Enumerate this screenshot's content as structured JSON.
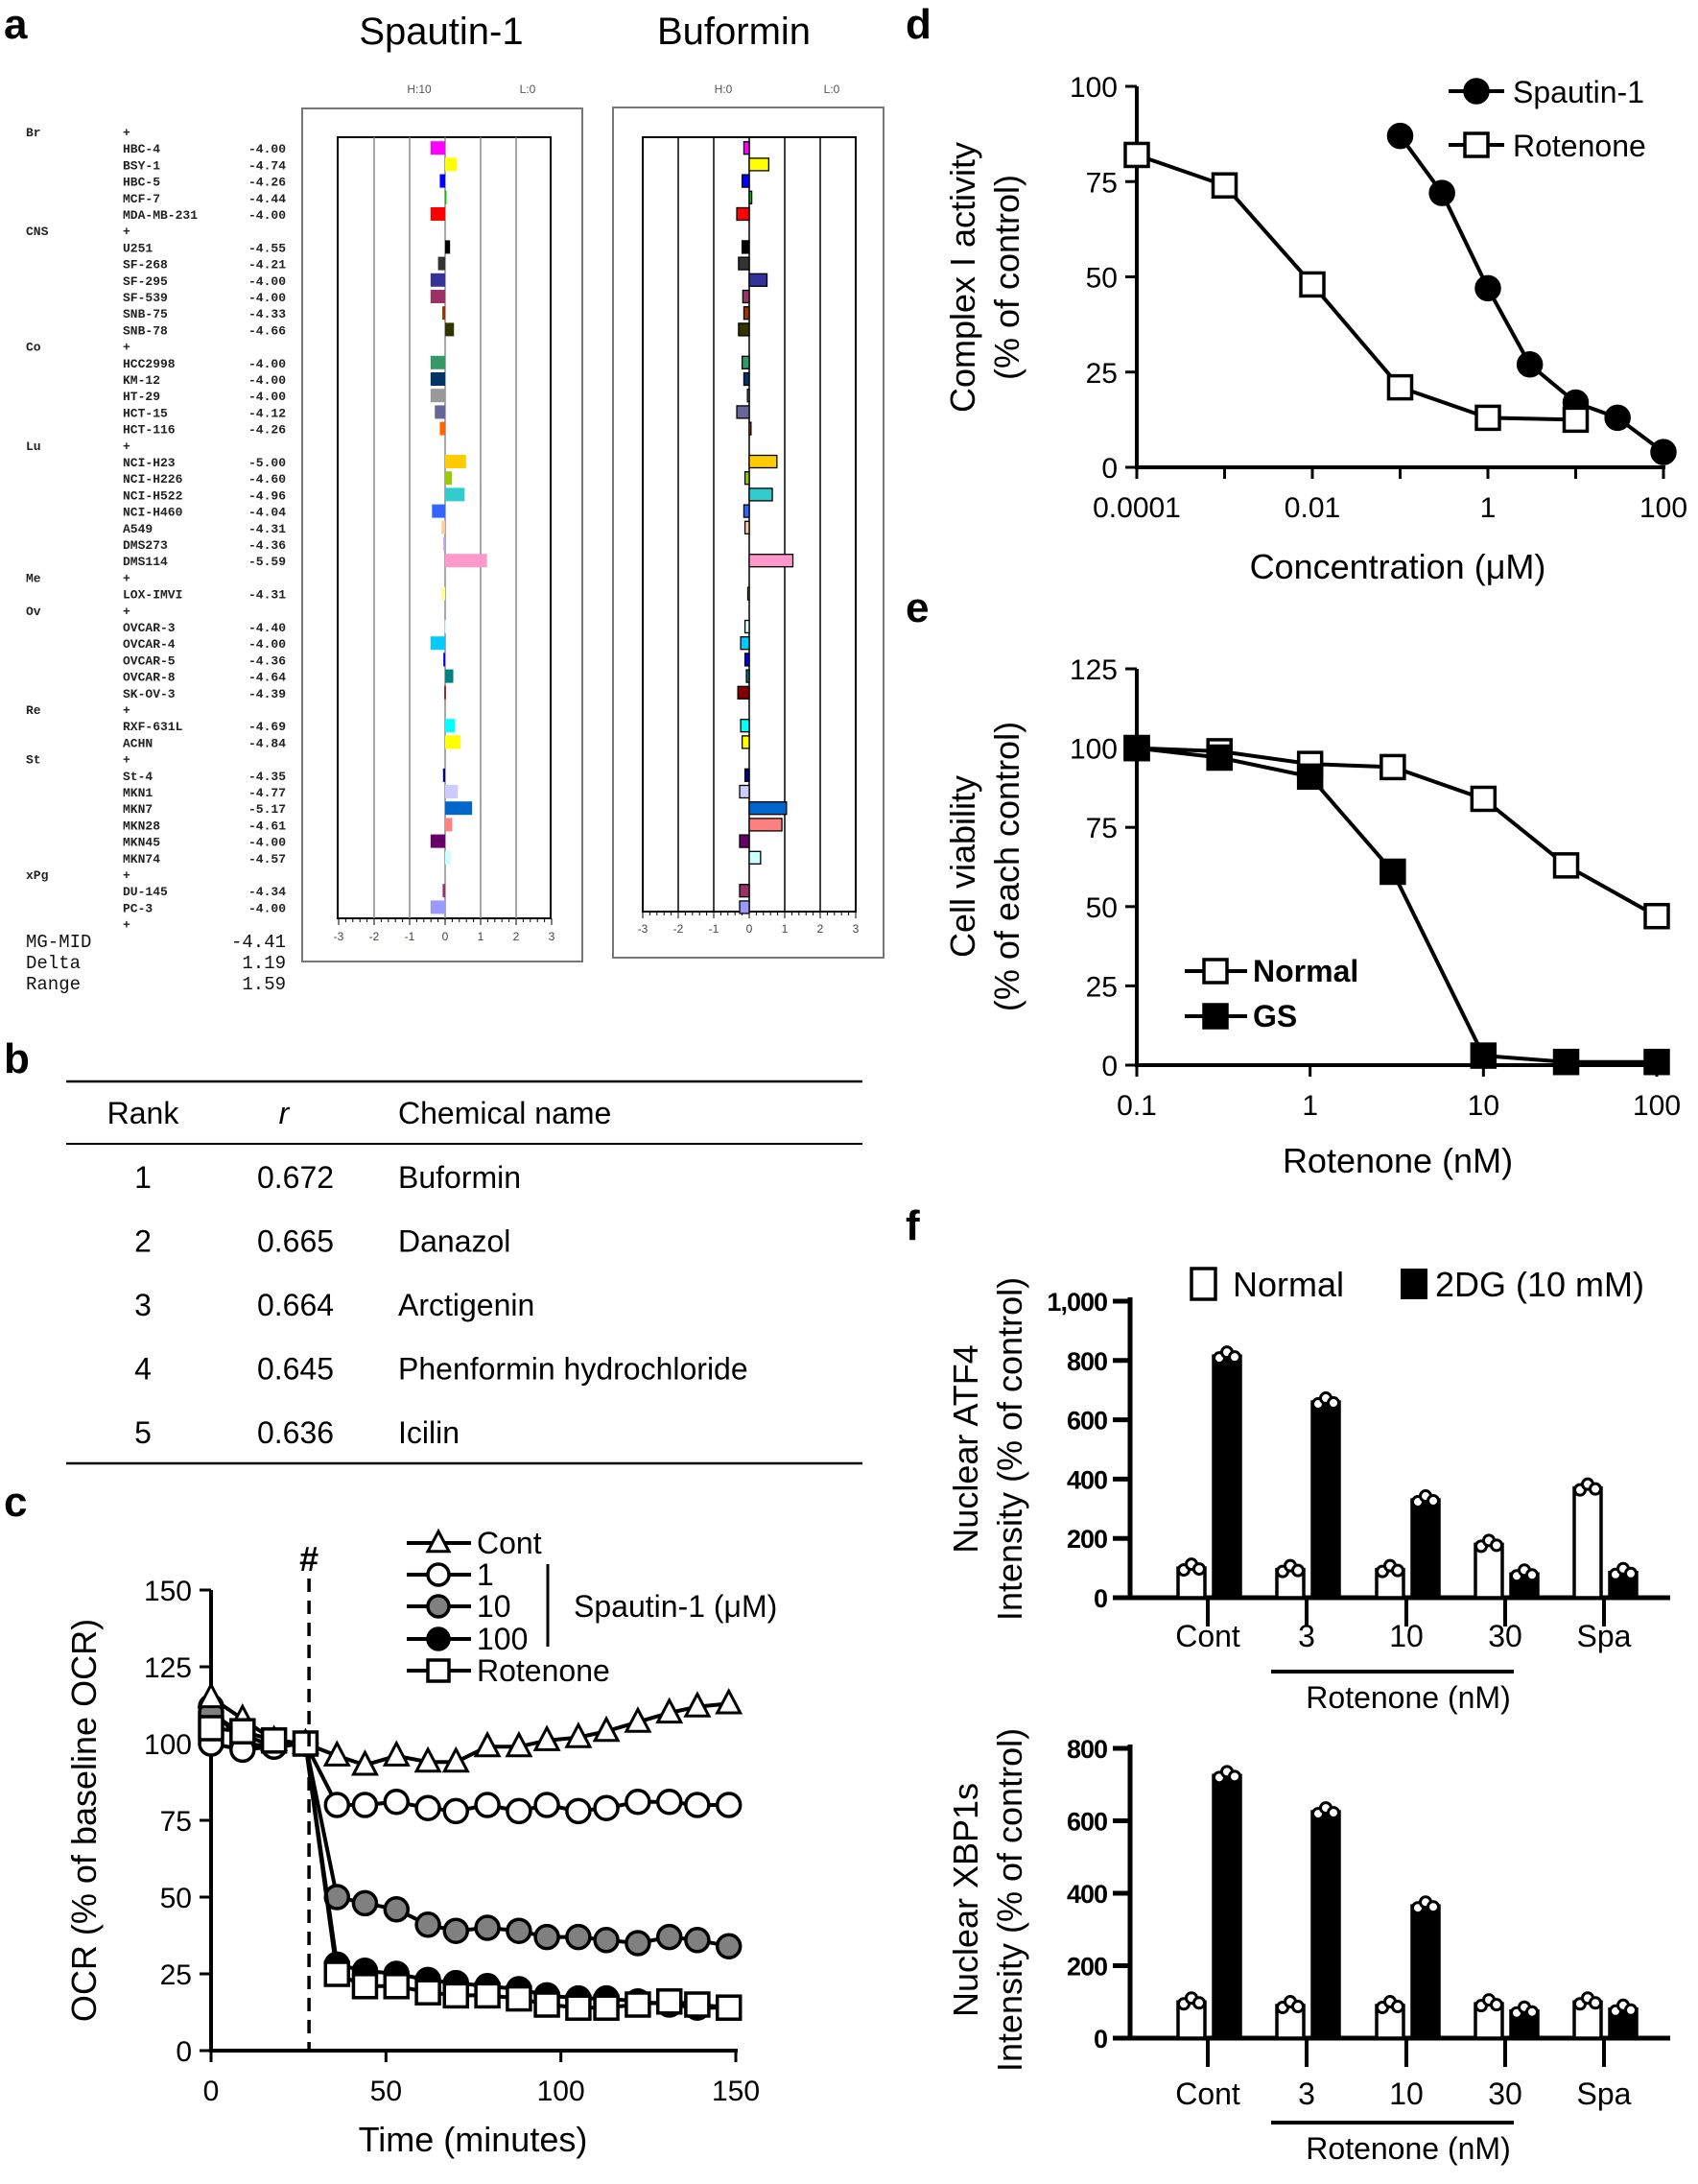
{
  "panel_labels": {
    "a": "a",
    "b": "b",
    "c": "c",
    "d": "d",
    "e": "e",
    "f": "f"
  },
  "chart_data": [
    {
      "type": "bar",
      "panel": "a",
      "titles": [
        "Spautin-1",
        "Buformin"
      ],
      "spautin_header": {
        "h": "H:10",
        "l": "L:0"
      },
      "buformin_header": {
        "h": "H:0",
        "l": "L:0"
      },
      "group_marker": "+",
      "xlim": [
        -3,
        3
      ],
      "xticks": [
        "-3",
        "-2",
        "-1",
        "0",
        "1",
        "2",
        "3"
      ],
      "groups": [
        {
          "name": "Br",
          "lines": [
            {
              "name": "HBC-4",
              "value": "-4.00",
              "color": "#ff00ff",
              "buformin": -0.15
            },
            {
              "name": "BSY-1",
              "value": "-4.74",
              "color": "#ffff00",
              "buformin": 0.55
            },
            {
              "name": "HBC-5",
              "value": "-4.26",
              "color": "#0000ff",
              "buformin": -0.2
            },
            {
              "name": "MCF-7",
              "value": "-4.44",
              "color": "#00cc00",
              "buformin": 0.07
            },
            {
              "name": "MDA-MB-231",
              "value": "-4.00",
              "color": "#ff0000",
              "buformin": -0.35
            }
          ]
        },
        {
          "name": "CNS",
          "lines": [
            {
              "name": "U251",
              "value": "-4.55",
              "color": "#000000",
              "buformin": -0.2
            },
            {
              "name": "SF-268",
              "value": "-4.21",
              "color": "#333333",
              "buformin": -0.3
            },
            {
              "name": "SF-295",
              "value": "-4.00",
              "color": "#333399",
              "buformin": 0.5
            },
            {
              "name": "SF-539",
              "value": "-4.00",
              "color": "#993366",
              "buformin": -0.18
            },
            {
              "name": "SNB-75",
              "value": "-4.33",
              "color": "#993300",
              "buformin": -0.15
            },
            {
              "name": "SNB-78",
              "value": "-4.66",
              "color": "#333300",
              "buformin": -0.3
            }
          ]
        },
        {
          "name": "Co",
          "lines": [
            {
              "name": "HCC2998",
              "value": "-4.00",
              "color": "#339966",
              "buformin": -0.2
            },
            {
              "name": "KM-12",
              "value": "-4.00",
              "color": "#003366",
              "buformin": -0.15
            },
            {
              "name": "HT-29",
              "value": "-4.00",
              "color": "#999999",
              "buformin": -0.05
            },
            {
              "name": "HCT-15",
              "value": "-4.12",
              "color": "#666699",
              "buformin": -0.35
            },
            {
              "name": "HCT-116",
              "value": "-4.26",
              "color": "#ff6600",
              "buformin": 0.05
            }
          ]
        },
        {
          "name": "Lu",
          "lines": [
            {
              "name": "NCI-H23",
              "value": "-5.00",
              "color": "#ffcc00",
              "buformin": 0.78
            },
            {
              "name": "NCI-H226",
              "value": "-4.60",
              "color": "#99cc00",
              "buformin": -0.12
            },
            {
              "name": "NCI-H522",
              "value": "-4.96",
              "color": "#33cccc",
              "buformin": 0.65
            },
            {
              "name": "NCI-H460",
              "value": "-4.04",
              "color": "#3366ff",
              "buformin": -0.15
            },
            {
              "name": "A549",
              "value": "-4.31",
              "color": "#ffcc99",
              "buformin": -0.12
            },
            {
              "name": "DMS273",
              "value": "-4.36",
              "color": "#cc99ff",
              "buformin": 0
            },
            {
              "name": "DMS114",
              "value": "-5.59",
              "color": "#ff99cc",
              "buformin": 1.23
            }
          ]
        },
        {
          "name": "Me",
          "lines": [
            {
              "name": "LOX-IMVI",
              "value": "-4.31",
              "color": "#ffff99",
              "buformin": -0.04
            }
          ]
        },
        {
          "name": "Ov",
          "lines": [
            {
              "name": "OVCAR-3",
              "value": "-4.40",
              "color": "#ccffff",
              "buformin": -0.12
            },
            {
              "name": "OVCAR-4",
              "value": "-4.00",
              "color": "#00ccff",
              "buformin": -0.24
            },
            {
              "name": "OVCAR-5",
              "value": "-4.36",
              "color": "#0000ee",
              "buformin": -0.12
            },
            {
              "name": "OVCAR-8",
              "value": "-4.64",
              "color": "#008080",
              "buformin": -0.08
            },
            {
              "name": "SK-OV-3",
              "value": "-4.39",
              "color": "#800000",
              "buformin": -0.32
            }
          ]
        },
        {
          "name": "Re",
          "lines": [
            {
              "name": "RXF-631L",
              "value": "-4.69",
              "color": "#00ffff",
              "buformin": -0.24
            },
            {
              "name": "ACHN",
              "value": "-4.84",
              "color": "#ffff00",
              "buformin": -0.2
            }
          ]
        },
        {
          "name": "St",
          "lines": [
            {
              "name": "St-4",
              "value": "-4.35",
              "color": "#000080",
              "buformin": -0.12
            },
            {
              "name": "MKN1",
              "value": "-4.77",
              "color": "#ccccff",
              "buformin": -0.27
            },
            {
              "name": "MKN7",
              "value": "-5.17",
              "color": "#0066cc",
              "buformin": 1.05
            },
            {
              "name": "MKN28",
              "value": "-4.61",
              "color": "#ff8080",
              "buformin": 0.92
            },
            {
              "name": "MKN45",
              "value": "-4.00",
              "color": "#660066",
              "buformin": -0.27
            },
            {
              "name": "MKN74",
              "value": "-4.57",
              "color": "#ccffff",
              "buformin": 0.32
            }
          ]
        },
        {
          "name": "xPg",
          "lines": [
            {
              "name": "DU-145",
              "value": "-4.34",
              "color": "#993366",
              "buformin": -0.27
            },
            {
              "name": "PC-3",
              "value": "-4.00",
              "color": "#9999ff",
              "buformin": -0.27
            }
          ]
        }
      ],
      "summary": [
        {
          "label": "MG-MID",
          "value": "-4.41"
        },
        {
          "label": "Delta",
          "value": "1.19"
        },
        {
          "label": "Range",
          "value": "1.59"
        }
      ]
    },
    {
      "type": "table",
      "panel": "b",
      "headers": [
        "Rank",
        "r",
        "Chemical name"
      ],
      "rows": [
        [
          "1",
          "0.672",
          "Buformin"
        ],
        [
          "2",
          "0.665",
          "Danazol"
        ],
        [
          "3",
          "0.664",
          "Arctigenin"
        ],
        [
          "4",
          "0.645",
          "Phenformin hydrochloride"
        ],
        [
          "5",
          "0.636",
          "Icilin"
        ]
      ]
    },
    {
      "type": "line",
      "panel": "c",
      "xlabel": "Time (minutes)",
      "ylabel": "OCR (% of baseline OCR)",
      "xlim": [
        0,
        150
      ],
      "ylim": [
        0,
        150
      ],
      "xticks": [
        "0",
        "50",
        "100",
        "150"
      ],
      "yticks": [
        "0",
        "25",
        "50",
        "75",
        "100",
        "125",
        "150"
      ],
      "annotation": "#",
      "annotation_x": 28,
      "legend_group_label": "Spautin-1 (μM)",
      "x": [
        0,
        9,
        18,
        27,
        36,
        44,
        53,
        62,
        70,
        79,
        88,
        96,
        105,
        113,
        122,
        131,
        139,
        148
      ],
      "series": [
        {
          "name": "Cont",
          "marker": "triangle",
          "values": [
            115,
            108,
            101,
            100,
            96,
            93,
            96,
            94,
            94,
            99,
            99,
            101,
            102,
            104,
            107,
            110,
            112,
            113
          ]
        },
        {
          "name": "1",
          "marker": "circle-open",
          "values": [
            100,
            98,
            99,
            100,
            80,
            80,
            81,
            79,
            78,
            80,
            78,
            80,
            78,
            79,
            81,
            81,
            80,
            80
          ]
        },
        {
          "name": "10",
          "marker": "circle-gray",
          "values": [
            110,
            103,
            99,
            100,
            50,
            48,
            46,
            41,
            39,
            40,
            39,
            37,
            37,
            36,
            35,
            37,
            36,
            34
          ]
        },
        {
          "name": "100",
          "marker": "circle-filled",
          "values": [
            112,
            100,
            99,
            100,
            28,
            26,
            25,
            23,
            22,
            21,
            20,
            18,
            17,
            17,
            16,
            15,
            14,
            14
          ]
        },
        {
          "name": "Rotenone",
          "marker": "square-open",
          "values": [
            105,
            104,
            101,
            100,
            25,
            21,
            21,
            19,
            18,
            18,
            17,
            15,
            14,
            14,
            15,
            16,
            15,
            14
          ]
        }
      ]
    },
    {
      "type": "line",
      "panel": "d",
      "xlabel": "Concentration (μM)",
      "ylabel": [
        "Complex I activity",
        "(% of control)"
      ],
      "xscale": "log",
      "xlim": [
        0.0001,
        100
      ],
      "ylim": [
        0,
        100
      ],
      "xticks": [
        "0.0001",
        "0.01",
        "1",
        "100"
      ],
      "yticks": [
        "0",
        "25",
        "50",
        "75",
        "100"
      ],
      "legend_position": "top-right",
      "series": [
        {
          "name": "Spautin-1",
          "marker": "circle-filled",
          "x": [
            0.1,
            0.3,
            1,
            3,
            10,
            30,
            100
          ],
          "values": [
            87,
            72,
            47,
            27,
            17,
            13,
            4
          ]
        },
        {
          "name": "Rotenone",
          "marker": "square-open",
          "x": [
            0.0001,
            0.001,
            0.01,
            0.1,
            1,
            10
          ],
          "values": [
            82,
            74,
            48,
            21,
            13,
            12.5
          ]
        }
      ]
    },
    {
      "type": "line",
      "panel": "e",
      "xlabel": "Rotenone (nM)",
      "ylabel": [
        "Cell viability",
        "(% of each control)"
      ],
      "xscale": "log",
      "xlim": [
        0.1,
        100
      ],
      "ylim": [
        0,
        125
      ],
      "xticks": [
        "0.1",
        "1",
        "10",
        "100"
      ],
      "yticks": [
        "0",
        "25",
        "50",
        "75",
        "100",
        "125"
      ],
      "legend_position": "bottom-left",
      "series": [
        {
          "name": "Normal",
          "marker": "square-open",
          "x": [
            0.1,
            0.3,
            1,
            3,
            10,
            30,
            100
          ],
          "values": [
            100,
            99,
            95,
            94,
            84,
            63,
            47
          ]
        },
        {
          "name": "GS",
          "marker": "square-filled",
          "x": [
            0.1,
            0.3,
            1,
            3,
            10,
            30,
            100
          ],
          "values": [
            100,
            97,
            91,
            61,
            3,
            1,
            1
          ]
        }
      ]
    },
    {
      "type": "bar",
      "panel": "f",
      "ylabel": [
        "Nuclear ATF4",
        "Intensity (% of control)"
      ],
      "ylim": [
        0,
        1000
      ],
      "yticks": [
        "0",
        "200",
        "400",
        "600",
        "800",
        "1,000"
      ],
      "categories": [
        "Cont",
        "3",
        "10",
        "30",
        "Spa"
      ],
      "group_label": "Rotenone (nM)",
      "legend_position": "top",
      "series": [
        {
          "name": "Normal",
          "color": "#ffffff",
          "values": [
            100,
            95,
            95,
            180,
            370
          ]
        },
        {
          "name": "2DG (10 mM)",
          "color": "#000000",
          "values": [
            815,
            660,
            330,
            80,
            85
          ]
        }
      ]
    },
    {
      "type": "bar",
      "panel": "f",
      "ylabel": [
        "Nuclear XBP1s",
        "Intensity (% of control)"
      ],
      "ylim": [
        0,
        800
      ],
      "yticks": [
        "0",
        "200",
        "400",
        "600",
        "800"
      ],
      "categories": [
        "Cont",
        "3",
        "10",
        "30",
        "Spa"
      ],
      "group_label": "Rotenone (nM)",
      "series": [
        {
          "name": "Normal",
          "color": "#ffffff",
          "values": [
            100,
            90,
            90,
            95,
            100
          ]
        },
        {
          "name": "2DG (10 mM)",
          "color": "#000000",
          "values": [
            725,
            625,
            365,
            75,
            80
          ]
        }
      ]
    }
  ]
}
